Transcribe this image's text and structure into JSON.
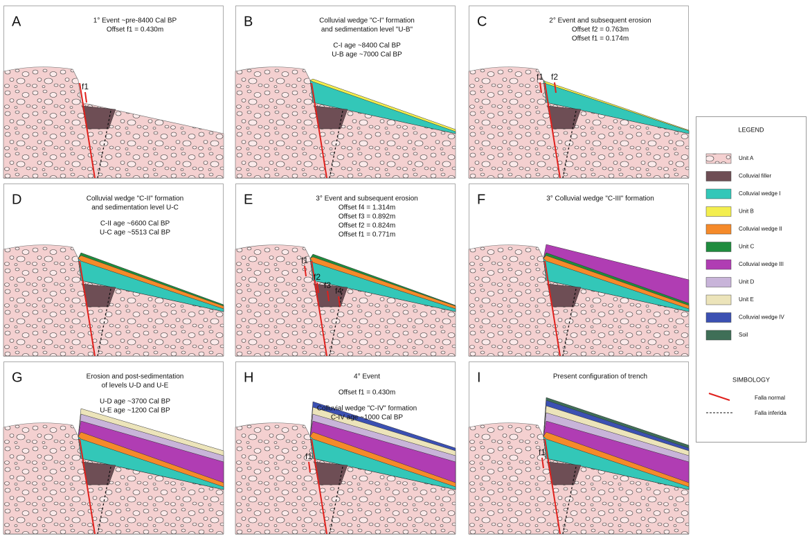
{
  "panels": [
    {
      "letter": "A",
      "text_blocks": [
        [
          "1° Event ~pre-8400 Cal BP",
          "Offset f1 = 0.430m"
        ]
      ],
      "fault_labels": [
        "f1"
      ]
    },
    {
      "letter": "B",
      "text_blocks": [
        [
          "Colluvial wedge \"C-I\" formation",
          "and sedimentation level \"U-B\""
        ],
        [
          "C-I age ~8400 Cal BP",
          "U-B age ~7000 Cal BP"
        ]
      ],
      "fault_labels": []
    },
    {
      "letter": "C",
      "text_blocks": [
        [
          "2° Event and subsequent erosion",
          "Offset f2 = 0.763m",
          "Offset f1 = 0.174m"
        ]
      ],
      "fault_labels": [
        "f1",
        "f2"
      ]
    },
    {
      "letter": "D",
      "text_blocks": [
        [
          "Colluvial wedge \"C-II\" formation",
          "and sedimentation level U-C"
        ],
        [
          "C-II age ~6600 Cal BP",
          "U-C age ~5513 Cal BP"
        ]
      ],
      "fault_labels": []
    },
    {
      "letter": "E",
      "text_blocks": [
        [
          "3° Event and subsequent erosion",
          "Offset f4 = 1.314m",
          "Offset f3 = 0.892m",
          "Offset f2 = 0.824m",
          "Offset f1 = 0.771m"
        ]
      ],
      "fault_labels": [
        "f1",
        "f2",
        "f3",
        "f4"
      ]
    },
    {
      "letter": "F",
      "text_blocks": [
        [
          "3° Colluvial wedge \"C-III\" formation"
        ]
      ],
      "fault_labels": []
    },
    {
      "letter": "G",
      "text_blocks": [
        [
          "Erosion and post-sedimentation",
          "of levels U-D and U-E"
        ],
        [
          "U-D age ~3700 Cal BP",
          "U-E age ~1200 Cal BP"
        ]
      ],
      "fault_labels": []
    },
    {
      "letter": "H",
      "text_blocks": [
        [
          "4° Event"
        ],
        [
          "Offset f1 = 0.430m"
        ],
        [
          "Colluvial wedge \"C-IV\" formation",
          "C-IV age ~1000 Cal BP"
        ]
      ],
      "fault_labels": [
        "f1"
      ]
    },
    {
      "letter": "I",
      "text_blocks": [
        [
          "Present configuration  of trench"
        ]
      ],
      "fault_labels": [
        "f1"
      ]
    }
  ],
  "legend": {
    "title": "LEGEND",
    "items": [
      {
        "label": "Unit A",
        "color": "#f2cccc"
      },
      {
        "label": "Colluvial filler",
        "color": "#6e4e55"
      },
      {
        "label": "Colluvial wedge I",
        "color": "#33c7b8"
      },
      {
        "label": "Unit B",
        "color": "#f3ee4e"
      },
      {
        "label": "Colluvial wedge II",
        "color": "#f58a2a"
      },
      {
        "label": "Unit C",
        "color": "#1f8c3e"
      },
      {
        "label": "Colluvial wedge III",
        "color": "#b03db3"
      },
      {
        "label": "Unit D",
        "color": "#c8b4d9"
      },
      {
        "label": "Unit E",
        "color": "#ece4ba"
      },
      {
        "label": "Colluvial wedge IV",
        "color": "#3b50b2"
      },
      {
        "label": "Soil",
        "color": "#3f6f57"
      }
    ]
  },
  "symbology": {
    "title": "SIMBOLOGY",
    "items": [
      "Falla normal",
      "Falla inferida"
    ]
  }
}
